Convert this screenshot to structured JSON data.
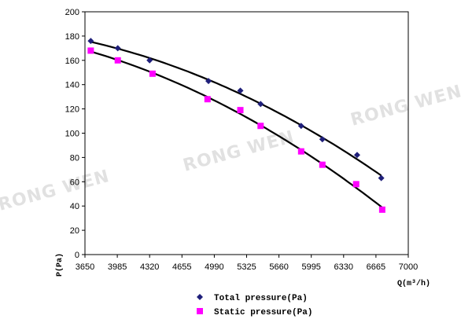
{
  "watermark": "RONG WEN",
  "chart_data": {
    "type": "scatter",
    "xlabel": "Q(m³/h)",
    "ylabel": "P(Pa)",
    "xlim": [
      3650,
      7000
    ],
    "ylim": [
      0,
      200
    ],
    "x_ticks": [
      3650,
      3985,
      4320,
      4655,
      4990,
      5325,
      5660,
      5995,
      6330,
      6665,
      7000
    ],
    "y_ticks": [
      0,
      20,
      40,
      60,
      80,
      100,
      120,
      140,
      160,
      180,
      200
    ],
    "grid": false,
    "legend_position": "bottom-center",
    "series": [
      {
        "name": "Total pressure(Pa)",
        "color": "#1f1f7a",
        "marker": "diamond",
        "x": [
          3710,
          3990,
          4320,
          4930,
          5260,
          5470,
          5890,
          6110,
          6470,
          6720
        ],
        "y": [
          176,
          170,
          160,
          143,
          135,
          124,
          106,
          95,
          82,
          63
        ]
      },
      {
        "name": "Static pressure(Pa)",
        "color": "#ff00ff",
        "marker": "square",
        "x": [
          3710,
          3990,
          4350,
          4920,
          5260,
          5470,
          5890,
          6110,
          6460,
          6730
        ],
        "y": [
          168,
          160,
          149,
          128,
          119,
          106,
          85,
          74,
          58,
          37
        ]
      }
    ]
  }
}
